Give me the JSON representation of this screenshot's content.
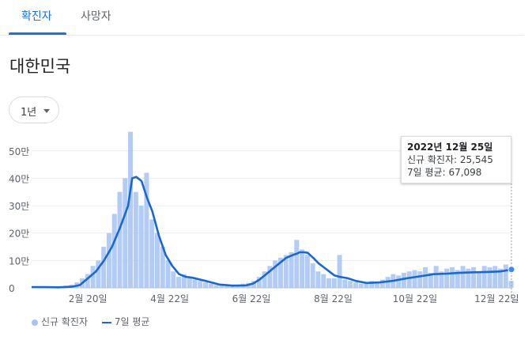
{
  "tabs": [
    {
      "label": "확진자",
      "active": true
    },
    {
      "label": "사망자",
      "active": false
    }
  ],
  "region_title": "대한민국",
  "range_selector": {
    "label": "1년"
  },
  "tooltip": {
    "date": "2022년 12월 25일",
    "new_cases_label": "신규 확진자",
    "new_cases_value": "25,545",
    "avg_label": "7일 평균",
    "avg_value": "67,098"
  },
  "colors": {
    "bars": "#a5c3f5",
    "line": "#1967d2",
    "accent": "#1a73e8"
  },
  "chart_data": {
    "type": "bar",
    "title": "",
    "xlabel": "",
    "ylabel": "",
    "x_tick_labels": [
      "2월 20일",
      "4월 22일",
      "6월 22일",
      "8월 22일",
      "10월 22일",
      "12월 22일"
    ],
    "y_tick_labels": [
      "0",
      "10만",
      "20만",
      "30만",
      "40만",
      "50만"
    ],
    "y_ticks": [
      0,
      100000,
      200000,
      300000,
      400000,
      500000
    ],
    "ylim": [
      0,
      560000
    ],
    "x_range_days": [
      0,
      358
    ],
    "x_tick_days": [
      42,
      103,
      164,
      225,
      286,
      347
    ],
    "grid": true,
    "legend_position": "bottom-left",
    "series": [
      {
        "name": "신규 확진자",
        "kind": "bar",
        "color": "#a5c3f5",
        "days": [
          0,
          4,
          8,
          12,
          16,
          20,
          24,
          28,
          32,
          36,
          40,
          44,
          48,
          52,
          56,
          60,
          64,
          68,
          72,
          76,
          80,
          84,
          88,
          92,
          96,
          100,
          104,
          108,
          112,
          116,
          120,
          124,
          128,
          132,
          136,
          140,
          144,
          148,
          152,
          156,
          160,
          164,
          168,
          172,
          176,
          180,
          184,
          188,
          192,
          196,
          200,
          204,
          208,
          212,
          216,
          220,
          224,
          228,
          232,
          236,
          240,
          244,
          248,
          252,
          256,
          260,
          264,
          268,
          272,
          276,
          280,
          284,
          288,
          292,
          296,
          300,
          304,
          308,
          312,
          316,
          320,
          324,
          328,
          332,
          336,
          340,
          344,
          348,
          352,
          356
        ],
        "values": [
          5000,
          4500,
          3500,
          4000,
          3000,
          5000,
          8000,
          12000,
          20000,
          35000,
          50000,
          80000,
          100000,
          150000,
          200000,
          270000,
          350000,
          400000,
          570000,
          350000,
          300000,
          420000,
          250000,
          200000,
          150000,
          100000,
          60000,
          40000,
          50000,
          35000,
          30000,
          25000,
          20000,
          15000,
          10000,
          8000,
          6000,
          9000,
          12000,
          15000,
          18000,
          25000,
          40000,
          60000,
          80000,
          100000,
          110000,
          120000,
          130000,
          175000,
          140000,
          120000,
          90000,
          60000,
          50000,
          35000,
          35000,
          120000,
          30000,
          25000,
          20000,
          15000,
          20000,
          25000,
          20000,
          30000,
          40000,
          50000,
          45000,
          55000,
          60000,
          65000,
          60000,
          75000,
          55000,
          80000,
          60000,
          70000,
          75000,
          65000,
          80000,
          70000,
          75000,
          60000,
          80000,
          75000,
          80000,
          70000,
          85000,
          25545
        ]
      },
      {
        "name": "7일 평균",
        "kind": "line",
        "color": "#1967d2",
        "days": [
          0,
          10,
          20,
          30,
          36,
          42,
          48,
          54,
          60,
          66,
          72,
          75,
          78,
          82,
          86,
          90,
          95,
          100,
          105,
          110,
          115,
          120,
          130,
          140,
          150,
          160,
          165,
          170,
          175,
          180,
          185,
          190,
          195,
          198,
          200,
          203,
          206,
          210,
          214,
          218,
          222,
          226,
          230,
          236,
          242,
          250,
          260,
          270,
          280,
          290,
          300,
          310,
          320,
          330,
          340,
          350,
          358
        ],
        "values": [
          3000,
          2500,
          2000,
          4000,
          10000,
          35000,
          60000,
          100000,
          150000,
          220000,
          300000,
          400000,
          405000,
          390000,
          330000,
          280000,
          190000,
          120000,
          80000,
          50000,
          40000,
          37000,
          25000,
          12000,
          8000,
          9000,
          15000,
          30000,
          50000,
          70000,
          90000,
          110000,
          120000,
          125000,
          130000,
          130000,
          128000,
          110000,
          90000,
          75000,
          60000,
          45000,
          40000,
          35000,
          25000,
          18000,
          20000,
          26000,
          35000,
          42000,
          50000,
          52000,
          55000,
          57000,
          58000,
          60000,
          67098
        ]
      }
    ]
  }
}
